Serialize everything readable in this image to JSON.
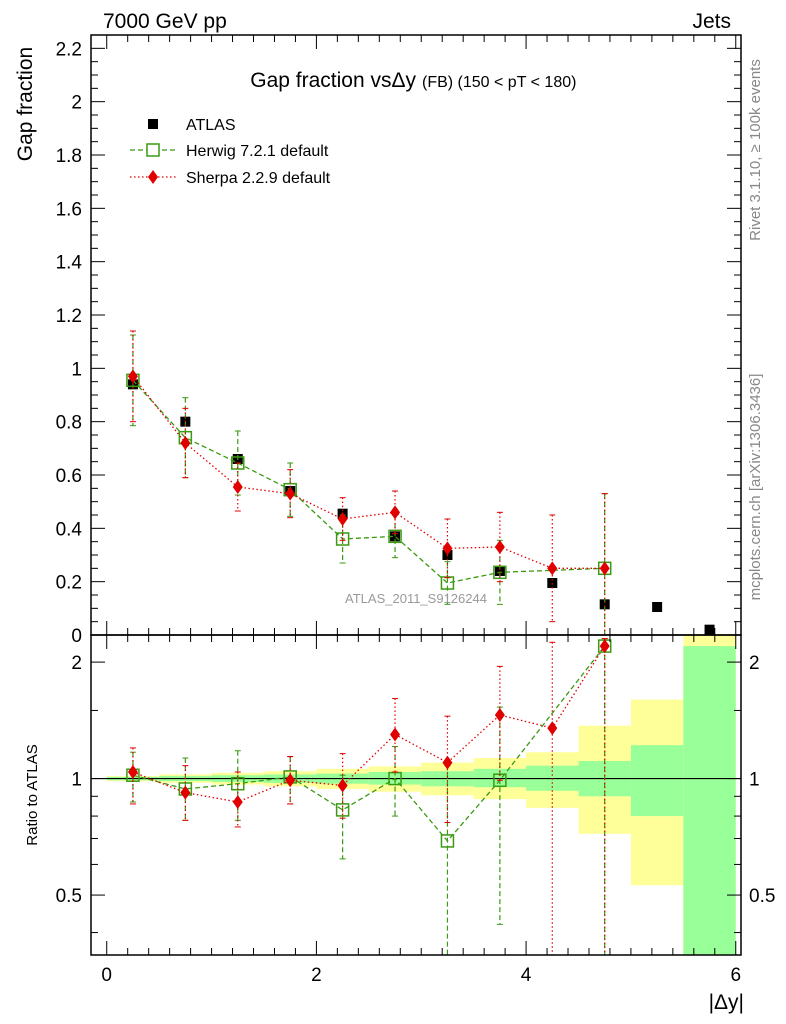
{
  "header": {
    "left": "7000 GeV pp",
    "right": "Jets"
  },
  "side_labels": {
    "rivet": "Rivet 3.1.10, ≥ 100k events",
    "mcplots": "mcplots.cern.ch [arXiv:1306.3436]"
  },
  "watermark": "ATLAS_2011_S9126244",
  "chart_data": [
    {
      "type": "scatter",
      "panel": "main",
      "title_main": "Gap fraction vsΔy",
      "title_sub": "(FB) (150 < pT < 180)",
      "ylabel": "Gap fraction",
      "xlim": [
        -0.15,
        6.05
      ],
      "ylim": [
        0,
        2.25
      ],
      "yticks": [
        0,
        0.2,
        0.4,
        0.6,
        0.8,
        1,
        1.2,
        1.4,
        1.6,
        1.8,
        2,
        2.2
      ],
      "ytick_labels": [
        "0",
        "0.2",
        "0.4",
        "0.6",
        "0.8",
        "1",
        "1.2",
        "1.4",
        "1.6",
        "1.8",
        "2",
        "2.2"
      ],
      "legend_position": "top-left",
      "x": [
        0.25,
        0.75,
        1.25,
        1.75,
        2.25,
        2.75,
        3.25,
        3.75,
        4.25,
        4.75,
        5.25,
        5.75
      ],
      "series": [
        {
          "name": "ATLAS",
          "style": "data",
          "color": "#000000",
          "values": [
            0.94,
            0.8,
            0.66,
            0.54,
            0.455,
            0.37,
            0.3,
            0.24,
            0.195,
            0.115,
            0.105,
            0.02
          ],
          "err": [
            0.015,
            0.02,
            0.02,
            0.02,
            0.015,
            0.015,
            0.015,
            0.015,
            0.01,
            0.01,
            0.005,
            0.005
          ]
        },
        {
          "name": "Herwig 7.2.1 default",
          "style": "herwig",
          "color": "#3a9a10",
          "values": [
            0.955,
            0.74,
            0.645,
            0.545,
            0.36,
            0.37,
            0.195,
            0.235,
            null,
            0.25,
            null,
            null
          ],
          "err": [
            0.17,
            0.15,
            0.12,
            0.1,
            0.09,
            0.08,
            0.08,
            0.12,
            null,
            0.28,
            null,
            null
          ]
        },
        {
          "name": "Sherpa 2.2.9 default",
          "style": "sherpa",
          "color": "#e00000",
          "values": [
            0.97,
            0.72,
            0.555,
            0.53,
            0.435,
            0.46,
            0.325,
            0.33,
            0.25,
            0.25,
            null,
            null
          ],
          "err": [
            0.17,
            0.13,
            0.09,
            0.09,
            0.08,
            0.08,
            0.11,
            0.13,
            0.2,
            0.28,
            null,
            null
          ]
        }
      ]
    },
    {
      "type": "scatter",
      "panel": "ratio",
      "ylabel": "Ratio to ATLAS",
      "xlabel": "|Δy|",
      "xlim": [
        -0.15,
        6.05
      ],
      "ylim": [
        0.35,
        2.35
      ],
      "log_y": true,
      "xticks": [
        0,
        2,
        4,
        6
      ],
      "xtick_labels": [
        "0",
        "2",
        "4",
        "6"
      ],
      "yticks": [
        0.5,
        1,
        2
      ],
      "ytick_labels": [
        "0.5",
        "1",
        "2"
      ],
      "bands": {
        "edges": [
          0,
          0.5,
          1,
          1.5,
          2,
          2.5,
          3,
          3.5,
          4,
          4.5,
          5,
          5.5,
          6
        ],
        "green_lo": [
          0.99,
          0.985,
          0.98,
          0.975,
          0.97,
          0.965,
          0.955,
          0.95,
          0.93,
          0.9,
          0.8,
          0.3
        ],
        "green_hi": [
          1.01,
          1.015,
          1.02,
          1.025,
          1.03,
          1.04,
          1.045,
          1.06,
          1.08,
          1.11,
          1.22,
          2.2
        ],
        "yellow_lo": [
          0.985,
          0.975,
          0.965,
          0.955,
          0.94,
          0.925,
          0.905,
          0.885,
          0.84,
          0.72,
          0.53,
          0.3
        ],
        "yellow_hi": [
          1.015,
          1.025,
          1.035,
          1.045,
          1.06,
          1.075,
          1.1,
          1.13,
          1.17,
          1.37,
          1.6,
          2.35
        ]
      },
      "series": [
        {
          "name": "Herwig 7.2.1 default",
          "style": "herwig",
          "color": "#3a9a10",
          "x": [
            0.25,
            0.75,
            1.25,
            1.75,
            2.25,
            2.75,
            3.25,
            3.75,
            4.75
          ],
          "values": [
            1.02,
            0.94,
            0.97,
            1.01,
            0.83,
            1.0,
            0.69,
            0.99,
            2.2
          ],
          "lo": [
            0.87,
            0.78,
            0.78,
            0.86,
            0.62,
            0.8,
            0.3,
            0.42,
            0.3
          ],
          "hi": [
            1.17,
            1.13,
            1.18,
            1.14,
            1.02,
            1.21,
            1.08,
            1.53,
            2.3
          ]
        },
        {
          "name": "Sherpa 2.2.9 default",
          "style": "sherpa",
          "color": "#e00000",
          "x": [
            0.25,
            0.75,
            1.25,
            1.75,
            2.25,
            2.75,
            3.25,
            3.75,
            4.25,
            4.75
          ],
          "values": [
            1.04,
            0.92,
            0.87,
            0.99,
            0.96,
            1.3,
            1.1,
            1.46,
            1.35,
            2.2
          ],
          "lo": [
            0.86,
            0.78,
            0.75,
            0.86,
            0.79,
            1.04,
            0.77,
            0.99,
            0.3,
            0.3
          ],
          "hi": [
            1.2,
            1.08,
            1.04,
            1.14,
            1.16,
            1.61,
            1.45,
            1.95,
            2.25,
            2.3
          ]
        }
      ]
    }
  ]
}
